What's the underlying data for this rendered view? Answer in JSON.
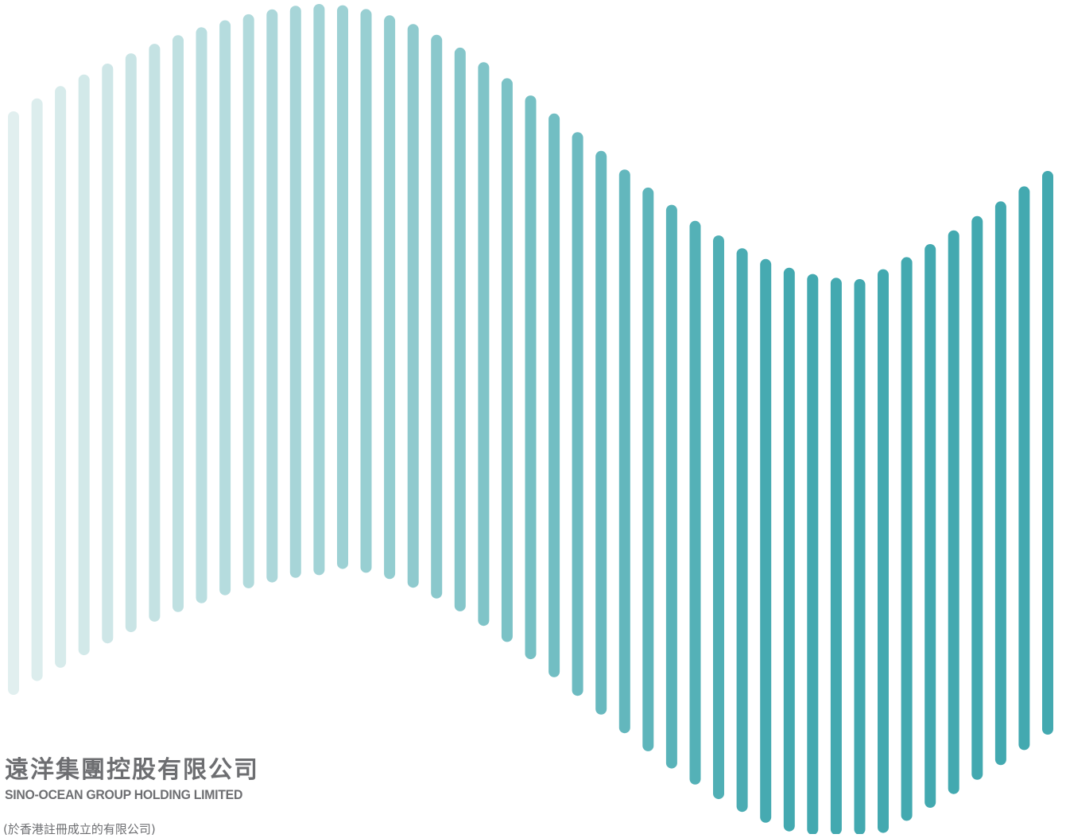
{
  "logo": {
    "company_name_zh": "遠洋集團控股有限公司",
    "company_name_en": "SINO-OCEAN GROUP HOLDING LIMITED"
  },
  "incorporation_note": "(於香港註冊成立的有限公司)",
  "wave_graphic": {
    "description_icon": "vertical-bar-wave-icon",
    "bar_count": 45,
    "color_light": "#e1efef",
    "color_dark": "#43a9b0"
  }
}
